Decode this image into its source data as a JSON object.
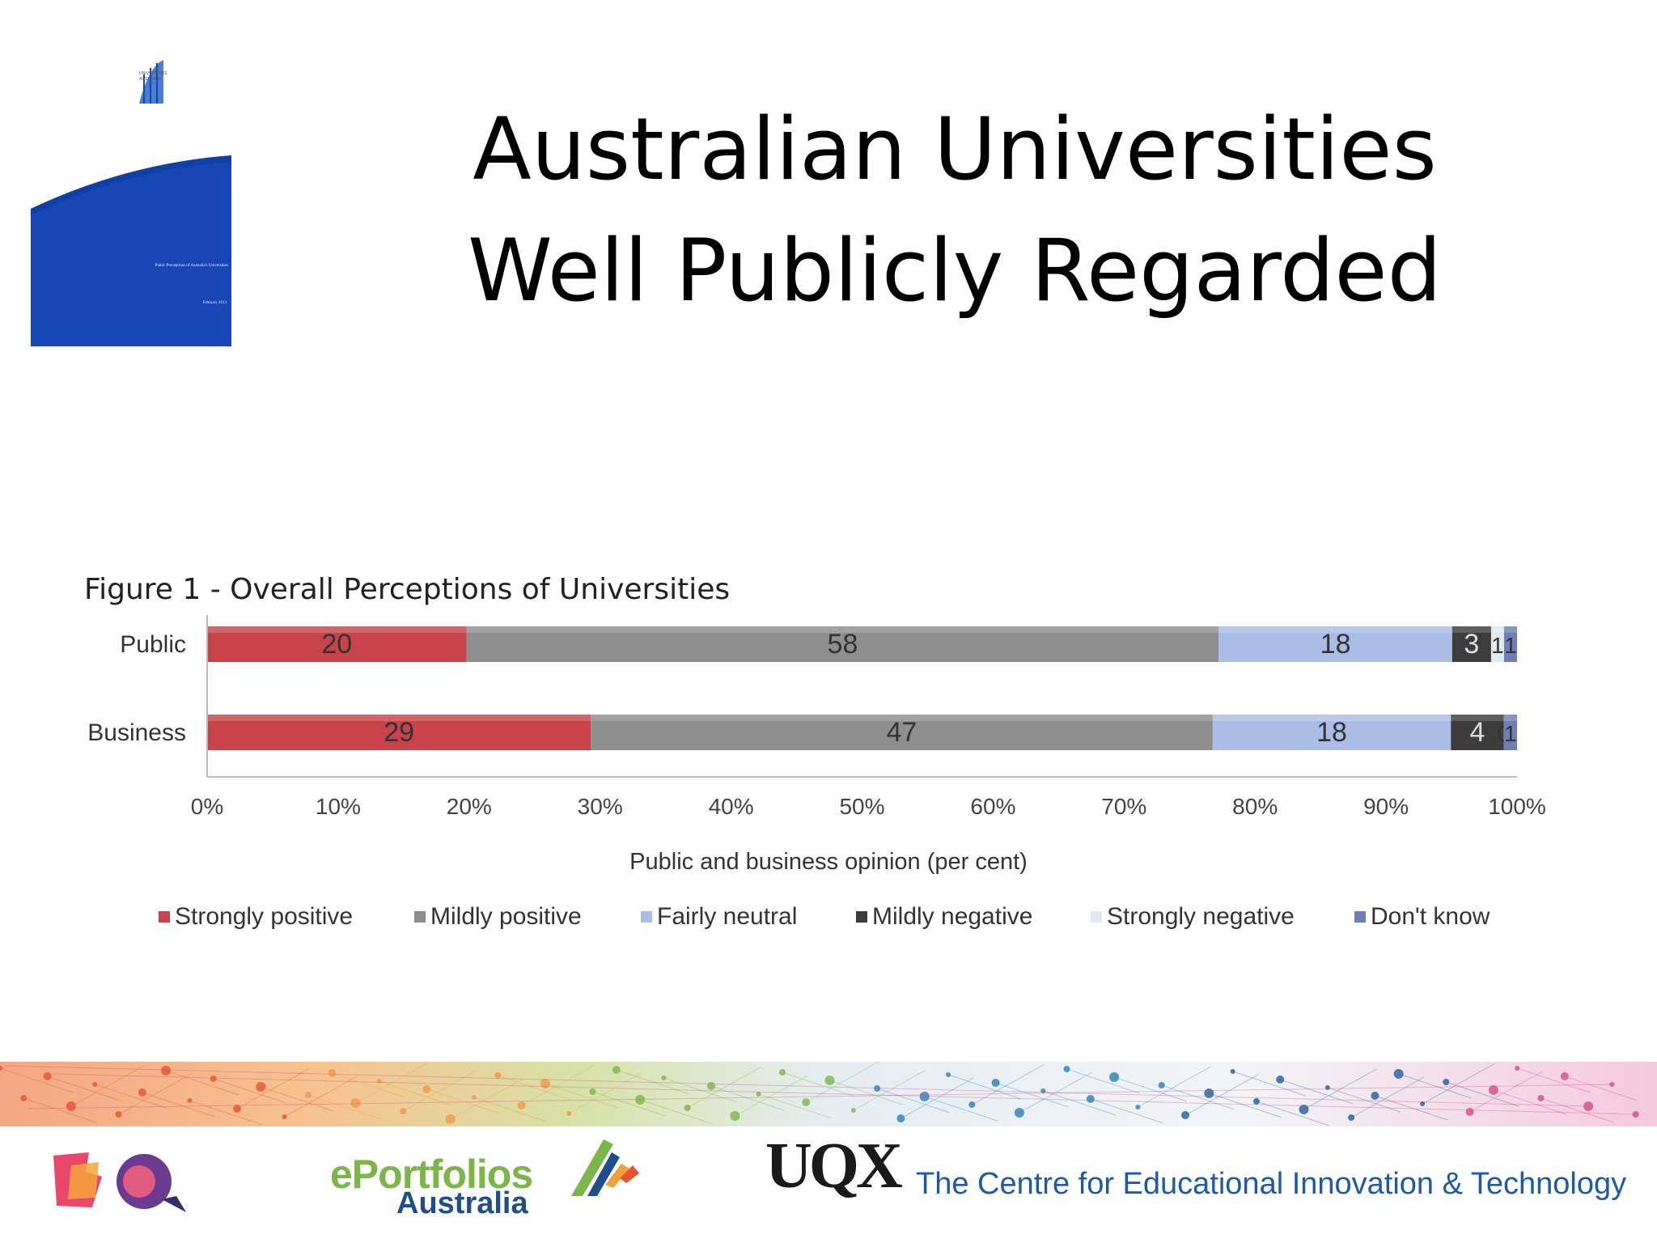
{
  "slide": {
    "title_line1": "Australian Universities",
    "title_line2": "Well Publicly Regarded"
  },
  "cover": {
    "logo_text_line1": "UNIVERSITIES",
    "logo_text_line2": "AUSTRALIA",
    "title": "Public Perceptions of Australia's Universities",
    "date": "February 2013",
    "colors": {
      "blue": "#1747b4",
      "accent": "#4a7fd0"
    }
  },
  "chart_data": {
    "type": "bar",
    "orientation": "horizontal",
    "stacked": true,
    "title": "Figure 1 - Overall Perceptions of Universities",
    "xlabel": "Public and business opinion (per cent)",
    "ylabel": "",
    "categories": [
      "Public",
      "Business"
    ],
    "xlim": [
      0,
      100
    ],
    "xticks": [
      "0%",
      "10%",
      "20%",
      "30%",
      "40%",
      "50%",
      "60%",
      "70%",
      "80%",
      "90%",
      "100%"
    ],
    "series": [
      {
        "name": "Strongly positive",
        "values": [
          20,
          29
        ],
        "labels": [
          "20",
          "29"
        ],
        "color": "#c9444a"
      },
      {
        "name": "Mildly positive",
        "values": [
          58,
          47
        ],
        "labels": [
          "58",
          "47"
        ],
        "color": "#8e8e8e"
      },
      {
        "name": "Fairly neutral",
        "values": [
          18,
          18
        ],
        "labels": [
          "18",
          "18"
        ],
        "color": "#a9bde6"
      },
      {
        "name": "Mildly negative",
        "values": [
          3,
          4
        ],
        "labels": [
          "3",
          "4"
        ],
        "color": "#3c3c3c"
      },
      {
        "name": "Strongly negative",
        "values": [
          1,
          0
        ],
        "labels": [
          "1",
          "0"
        ],
        "color": "#dfeaf0"
      },
      {
        "name": "Don't know",
        "values": [
          1,
          1
        ],
        "labels": [
          "1",
          "1"
        ],
        "color": "#6f7fb5"
      }
    ],
    "legend_position": "bottom",
    "grid": false
  },
  "footer": {
    "eportfolios_line1": "ePortfolios",
    "eportfolios_line2": "Australia",
    "uqx": "UQX",
    "centre": "The Centre for Educational Innovation & Technology"
  }
}
